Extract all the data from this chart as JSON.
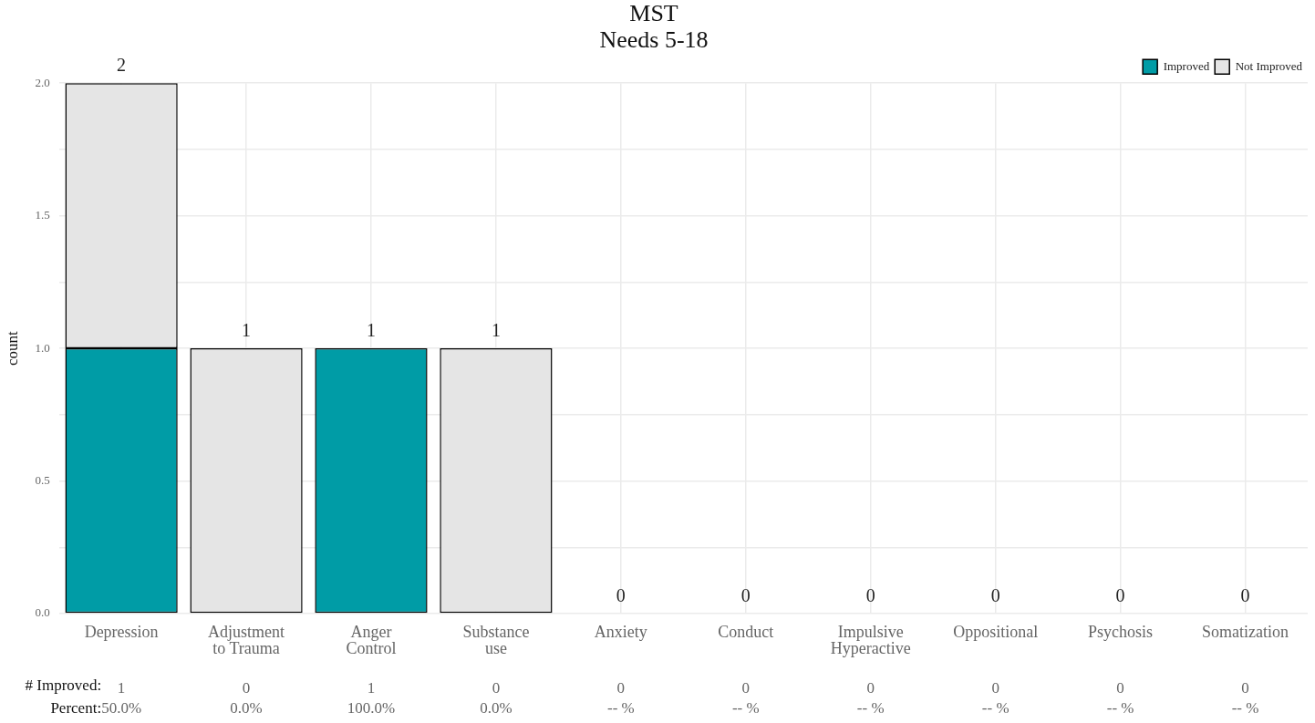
{
  "chart_data": {
    "type": "bar",
    "title": "MST\nNeeds 5-18",
    "ylabel": "count",
    "categories": [
      "Depression",
      "Adjustment\nto Trauma",
      "Anger\nControl",
      "Substance\nuse",
      "Anxiety",
      "Conduct",
      "Impulsive\nHyperactive",
      "Oppositional",
      "Psychosis",
      "Somatization"
    ],
    "series": [
      {
        "name": "Improved",
        "color": "#009ca6",
        "values": [
          1,
          0,
          1,
          0,
          0,
          0,
          0,
          0,
          0,
          0
        ],
        "value_labels": [
          "1",
          "0",
          "1",
          "0",
          "0",
          "0",
          "0",
          "0",
          "0",
          "0"
        ]
      },
      {
        "name": "Not Improved",
        "color": "#e5e5e5",
        "values": [
          1,
          1,
          0,
          1,
          0,
          0,
          0,
          0,
          0,
          0
        ]
      }
    ],
    "stacked": true,
    "totals": [
      "2",
      "1",
      "1",
      "1",
      "0",
      "0",
      "0",
      "0",
      "0",
      "0"
    ],
    "ylim": [
      0,
      2
    ],
    "yticks": [
      {
        "value": 0,
        "label": "0.0"
      },
      {
        "value": 0.25,
        "label": null
      },
      {
        "value": 0.5,
        "label": "0.5"
      },
      {
        "value": 0.75,
        "label": null
      },
      {
        "value": 1,
        "label": "1.0"
      },
      {
        "value": 1.25,
        "label": null
      },
      {
        "value": 1.5,
        "label": "1.5"
      },
      {
        "value": 1.75,
        "label": null
      },
      {
        "value": 2,
        "label": "2.0"
      }
    ],
    "grid": true,
    "legend": "top right",
    "annotations": [
      "# Improved:",
      "Percent:",
      "50.0%",
      "0.0%",
      "100.0%",
      "0.0%",
      "-- %",
      "-- %",
      "-- %",
      "-- %",
      "-- %",
      "-- %"
    ]
  }
}
